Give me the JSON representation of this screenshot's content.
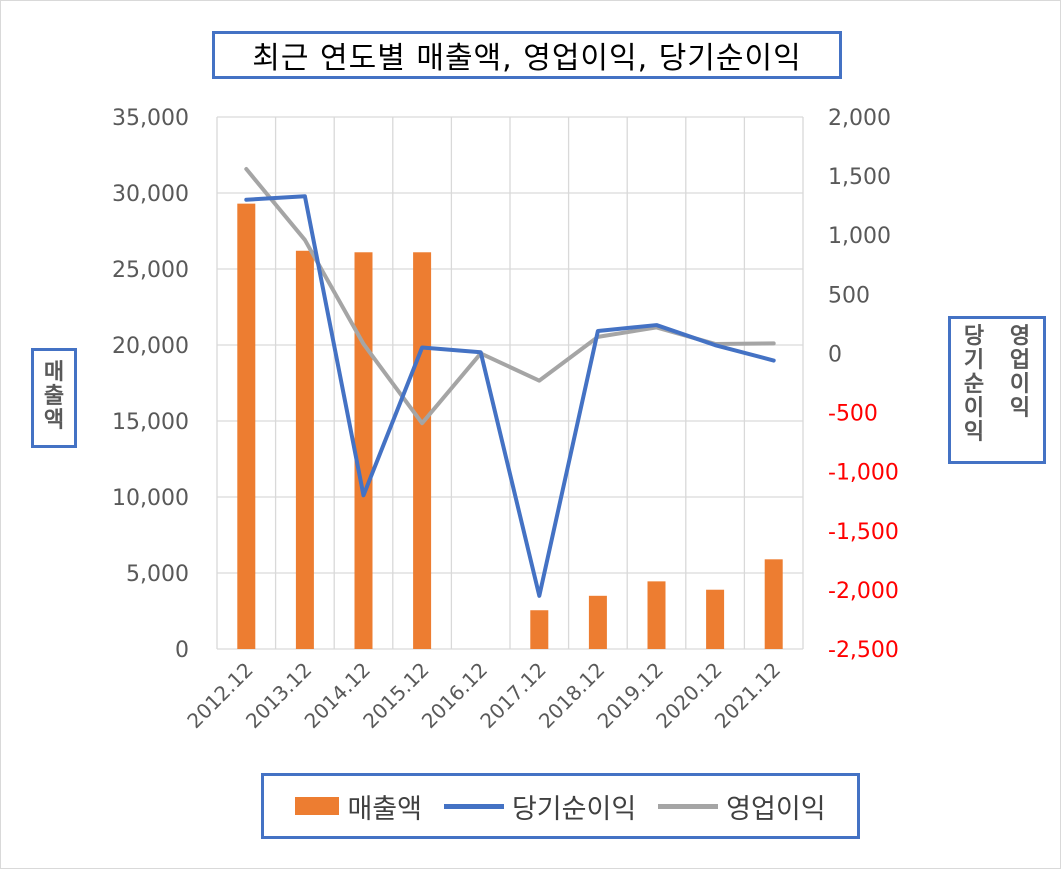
{
  "chart_data": {
    "type": "bar+line",
    "title": "최근 연도별 매출액, 영업이익, 당기순이익",
    "categories": [
      "2012.12",
      "2013.12",
      "2014.12",
      "2015.12",
      "2016.12",
      "2017.12",
      "2018.12",
      "2019.12",
      "2020.12",
      "2021.12"
    ],
    "y_left": {
      "label": "매출액",
      "range": [
        0,
        35000
      ],
      "ticks": [
        "0",
        "5,000",
        "10,000",
        "15,000",
        "20,000",
        "25,000",
        "30,000",
        "35,000"
      ]
    },
    "y_right": {
      "label_a": "당기순이익",
      "label_b": "영업이익",
      "range": [
        -2500,
        2000
      ],
      "ticks": [
        "-2,500",
        "-2,000",
        "-1,500",
        "-1,000",
        "-500",
        "0",
        "500",
        "1,000",
        "1,500",
        "2,000"
      ],
      "negative_color": "#ff0000"
    },
    "gridlines": true,
    "legend_position": "bottom",
    "series": [
      {
        "name": "매출액",
        "type": "bar",
        "axis": "left",
        "color": "#ed7d31",
        "values": [
          29300,
          26200,
          26100,
          26100,
          0,
          2550,
          3500,
          4450,
          3900,
          5900
        ]
      },
      {
        "name": "당기순이익",
        "type": "line",
        "axis": "right",
        "color": "#4472c4",
        "values": [
          1300,
          1330,
          -1200,
          50,
          10,
          -2050,
          190,
          240,
          70,
          -60
        ]
      },
      {
        "name": "영업이익",
        "type": "line",
        "axis": "right",
        "color": "#a5a5a5",
        "values": [
          1560,
          960,
          80,
          -590,
          0,
          -230,
          140,
          220,
          80,
          85
        ]
      }
    ]
  }
}
